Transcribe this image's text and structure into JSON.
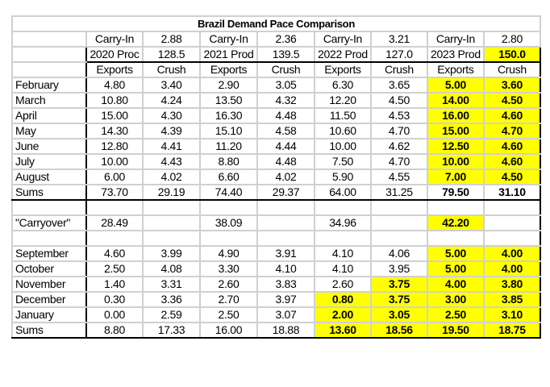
{
  "title": "Brazil Demand Pace Comparison",
  "highlight_color": "#ffff00",
  "rows": [
    {
      "kind": "carry",
      "label": "",
      "cells": [
        "Carry-In",
        "2.88",
        "Carry-In",
        "2.36",
        "Carry-In",
        "3.21",
        "Carry-In",
        "2.80"
      ]
    },
    {
      "kind": "prod",
      "label": "",
      "cells": [
        "2020 Proc",
        "128.5",
        "2021 Prod",
        "139.5",
        "2022 Prod",
        "127.0",
        "2023 Prod",
        "150.0"
      ],
      "highlight": [
        7
      ],
      "bold": [
        7
      ]
    },
    {
      "kind": "header",
      "label": "",
      "cells": [
        "Exports",
        "Crush",
        "Exports",
        "Crush",
        "Exports",
        "Crush",
        "Exports",
        "Crush"
      ]
    },
    {
      "kind": "month",
      "label": "February",
      "cells": [
        "4.80",
        "3.40",
        "2.90",
        "3.05",
        "6.30",
        "3.65",
        "5.00",
        "3.60"
      ],
      "highlight": [
        6,
        7
      ],
      "bold": [
        6,
        7
      ]
    },
    {
      "kind": "month",
      "label": "March",
      "cells": [
        "10.80",
        "4.24",
        "13.50",
        "4.32",
        "12.20",
        "4.50",
        "14.00",
        "4.50"
      ],
      "highlight": [
        6,
        7
      ],
      "bold": [
        6,
        7
      ]
    },
    {
      "kind": "month",
      "label": "April",
      "cells": [
        "15.00",
        "4.30",
        "16.30",
        "4.48",
        "11.50",
        "4.53",
        "16.00",
        "4.60"
      ],
      "highlight": [
        6,
        7
      ],
      "bold": [
        6,
        7
      ]
    },
    {
      "kind": "month",
      "label": "May",
      "cells": [
        "14.30",
        "4.39",
        "15.10",
        "4.58",
        "10.60",
        "4.70",
        "15.00",
        "4.70"
      ],
      "highlight": [
        6,
        7
      ],
      "bold": [
        6,
        7
      ]
    },
    {
      "kind": "month",
      "label": "June",
      "cells": [
        "12.80",
        "4.41",
        "11.20",
        "4.44",
        "10.00",
        "4.62",
        "12.50",
        "4.60"
      ],
      "highlight": [
        6,
        7
      ],
      "bold": [
        6,
        7
      ]
    },
    {
      "kind": "month",
      "label": "July",
      "cells": [
        "10.00",
        "4.43",
        "8.80",
        "4.48",
        "7.50",
        "4.70",
        "10.00",
        "4.60"
      ],
      "highlight": [
        6,
        7
      ],
      "bold": [
        6,
        7
      ]
    },
    {
      "kind": "month",
      "label": "August",
      "cells": [
        "6.00",
        "4.02",
        "6.60",
        "4.02",
        "5.90",
        "4.55",
        "7.00",
        "4.50"
      ],
      "highlight": [
        6,
        7
      ],
      "bold": [
        6,
        7
      ]
    },
    {
      "kind": "sums",
      "label": "Sums",
      "cells": [
        "73.70",
        "29.19",
        "74.40",
        "29.37",
        "64.00",
        "31.25",
        "79.50",
        "31.10"
      ],
      "bold": [
        6,
        7
      ]
    },
    {
      "kind": "blank",
      "label": "",
      "cells": [
        "",
        "",
        "",
        "",
        "",
        "",
        "",
        ""
      ]
    },
    {
      "kind": "carryover",
      "label": "\"Carryover\"",
      "cells": [
        "28.49",
        "",
        "38.09",
        "",
        "34.96",
        "",
        "42.20",
        ""
      ],
      "highlight": [
        6
      ],
      "bold": [
        6
      ]
    },
    {
      "kind": "blank",
      "label": "",
      "cells": [
        "",
        "",
        "",
        "",
        "",
        "",
        "",
        ""
      ]
    },
    {
      "kind": "month",
      "label": "September",
      "cells": [
        "4.60",
        "3.99",
        "4.90",
        "3.91",
        "4.10",
        "4.06",
        "5.00",
        "4.00"
      ],
      "highlight": [
        6,
        7
      ],
      "bold": [
        6,
        7
      ]
    },
    {
      "kind": "month",
      "label": "October",
      "cells": [
        "2.50",
        "4.08",
        "3.30",
        "4.10",
        "4.10",
        "3.95",
        "5.00",
        "4.00"
      ],
      "highlight": [
        6,
        7
      ],
      "bold": [
        6,
        7
      ]
    },
    {
      "kind": "month",
      "label": "November",
      "cells": [
        "1.40",
        "3.31",
        "2.60",
        "3.83",
        "2.60",
        "3.75",
        "4.00",
        "3.80"
      ],
      "highlight": [
        5,
        6,
        7
      ],
      "bold": [
        5,
        6,
        7
      ]
    },
    {
      "kind": "month",
      "label": "December",
      "cells": [
        "0.30",
        "3.36",
        "2.70",
        "3.97",
        "0.80",
        "3.75",
        "3.00",
        "3.85"
      ],
      "highlight": [
        4,
        5,
        6,
        7
      ],
      "bold": [
        4,
        5,
        6,
        7
      ]
    },
    {
      "kind": "month",
      "label": "January",
      "cells": [
        "0.00",
        "2.59",
        "2.50",
        "3.07",
        "2.00",
        "3.05",
        "2.50",
        "3.10"
      ],
      "highlight": [
        4,
        5,
        6,
        7
      ],
      "bold": [
        4,
        5,
        6,
        7
      ]
    },
    {
      "kind": "sums",
      "label": "Sums",
      "cells": [
        "8.80",
        "17.33",
        "16.00",
        "18.88",
        "13.60",
        "18.56",
        "19.50",
        "18.75"
      ],
      "highlight": [
        4,
        5,
        6,
        7
      ],
      "bold": [
        4,
        5,
        6,
        7
      ]
    }
  ]
}
